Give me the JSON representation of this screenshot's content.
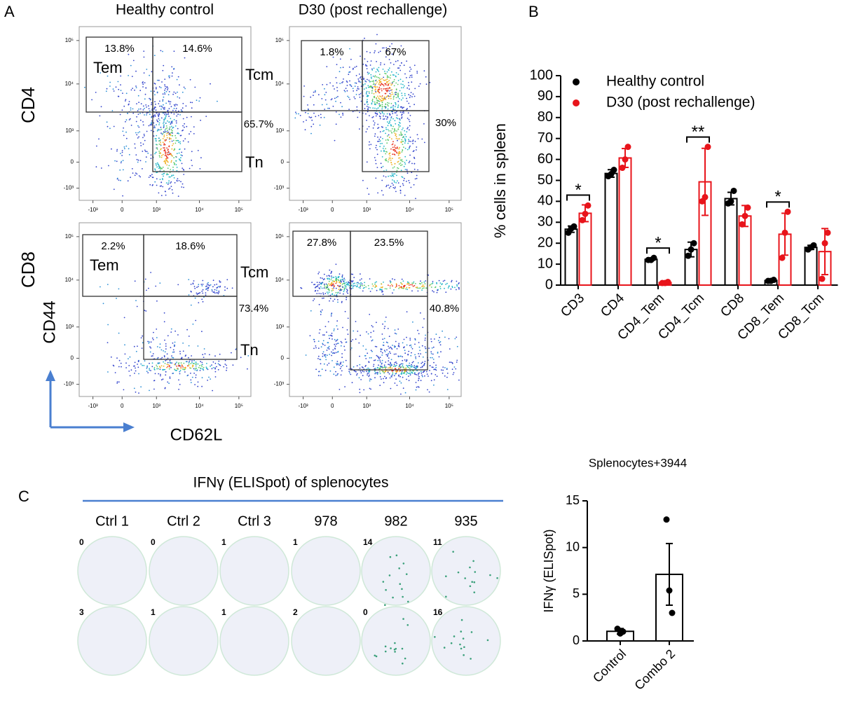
{
  "panel_a": {
    "label": "A",
    "columns": [
      "Healthy control",
      "D30 (post rechallenge)"
    ],
    "rows": [
      "CD4",
      "CD8"
    ],
    "y_axis_label": "CD44",
    "x_axis_label": "CD62L",
    "axis_ticks": {
      "x": [
        "-10³",
        "0",
        "10³",
        "10⁴",
        "10⁵"
      ],
      "y": [
        "10⁵",
        "10⁴",
        "10³",
        "0",
        "-10³"
      ]
    },
    "plots": [
      {
        "gates": [
          {
            "name": "Tem",
            "percent": "13.8%"
          },
          {
            "name": "Tcm",
            "percent": "14.6%"
          },
          {
            "name": "Tn",
            "percent": "65.7%"
          }
        ]
      },
      {
        "gates": [
          {
            "percent": "1.8%"
          },
          {
            "percent": "67%"
          },
          {
            "percent": "30%"
          }
        ]
      },
      {
        "gates": [
          {
            "name": "Tem",
            "percent": "2.2%"
          },
          {
            "name": "Tcm",
            "percent": "18.6%"
          },
          {
            "name": "Tn",
            "percent": "73.4%"
          }
        ]
      },
      {
        "gates": [
          {
            "percent": "27.8%"
          },
          {
            "percent": "23.5%"
          },
          {
            "percent": "40.8%"
          }
        ]
      }
    ]
  },
  "chart_data": [
    {
      "type": "bar",
      "panel_label": "B",
      "ylabel": "% cells in spleen",
      "categories": [
        "CD3",
        "CD4",
        "CD4_Tem",
        "CD4_Tcm",
        "CD8",
        "CD8_Tem",
        "CD8_Tcm"
      ],
      "ylim": [
        0,
        100
      ],
      "yticks": [
        0,
        10,
        20,
        30,
        40,
        50,
        60,
        70,
        80,
        90,
        100
      ],
      "series": [
        {
          "name": "Healthy control",
          "color": "#000000",
          "values": [
            26.7,
            53.3,
            12.3,
            17,
            41.3,
            2.2,
            18
          ],
          "errors": [
            1.5,
            1.8,
            0.5,
            3.5,
            3,
            0.3,
            1
          ],
          "points": [
            [
              25,
              27,
              28
            ],
            [
              52,
              53,
              55
            ],
            [
              12,
              12,
              13
            ],
            [
              14,
              17,
              20
            ],
            [
              39,
              40,
              45
            ],
            [
              2,
              2,
              2.5
            ],
            [
              17,
              18,
              19
            ]
          ]
        },
        {
          "name": "D30 (post rechallenge)",
          "color": "#e8141b",
          "values": [
            34.3,
            60.7,
            1.2,
            49.3,
            33,
            24.3,
            16
          ],
          "errors": [
            4,
            4.5,
            0.3,
            16,
            5,
            10,
            11
          ],
          "points": [
            [
              31,
              34,
              38
            ],
            [
              56,
              60,
              66
            ],
            [
              1,
              1,
              1.5
            ],
            [
              40,
              42,
              66
            ],
            [
              29,
              33,
              37
            ],
            [
              13,
              25,
              35
            ],
            [
              3,
              20,
              25
            ]
          ]
        }
      ],
      "legend": "upper-left",
      "significance": [
        {
          "category": "CD3",
          "label": "*"
        },
        {
          "category": "CD4_Tem",
          "label": "*"
        },
        {
          "category": "CD4_Tcm",
          "label": "**"
        },
        {
          "category": "CD8_Tem",
          "label": "*"
        }
      ]
    },
    {
      "type": "bar",
      "title": "Splenocytes+3944",
      "ylabel": "IFNγ (ELISpot)",
      "categories": [
        "Control",
        "Combo 2"
      ],
      "values": [
        1.03,
        7.13
      ],
      "errors": [
        0.3,
        3.3
      ],
      "points": [
        [
          1.3,
          0.8,
          1.0
        ],
        [
          13,
          5.4,
          3
        ]
      ],
      "color": "#000000",
      "ylim": [
        0,
        15
      ],
      "yticks": [
        0,
        5,
        10,
        15
      ]
    }
  ],
  "panel_c": {
    "label": "C",
    "title": "IFNγ (ELISpot) of splenocytes",
    "columns": [
      "Ctrl 1",
      "Ctrl 2",
      "Ctrl 3",
      "978",
      "982",
      "935"
    ],
    "counts": [
      [
        0,
        0,
        1,
        1,
        14,
        11
      ],
      [
        3,
        1,
        1,
        2,
        0,
        16
      ]
    ]
  }
}
